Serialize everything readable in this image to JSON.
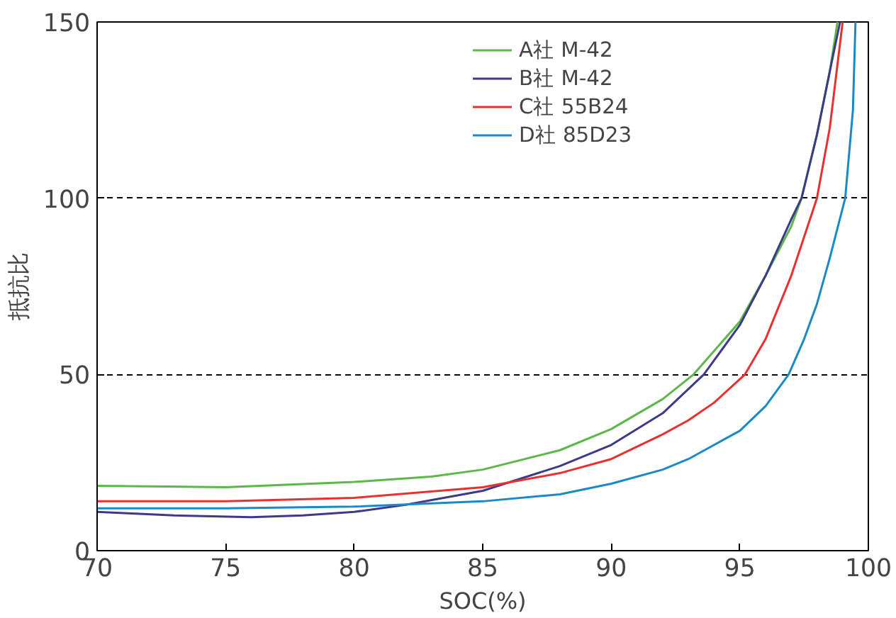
{
  "chart_data": {
    "type": "line",
    "xlabel": "SOC(%)",
    "ylabel": "抵抗比",
    "xlim": [
      70,
      100
    ],
    "ylim": [
      0,
      150
    ],
    "xticks": [
      70,
      75,
      80,
      85,
      90,
      95,
      100
    ],
    "yticks": [
      0,
      50,
      100,
      150
    ],
    "grid": "y",
    "legend": "top right",
    "line_style": "solid",
    "series": [
      {
        "name": "A社 M-42",
        "color": "#5cb848",
        "x": [
          70,
          75,
          80,
          83,
          85,
          88,
          90,
          92,
          93.2,
          95,
          96,
          97,
          97.4,
          98,
          98.5,
          98.8
        ],
        "values": [
          18.4,
          18,
          19.5,
          21,
          23,
          28.5,
          34.5,
          43,
          50,
          65,
          78,
          92,
          100,
          118,
          136,
          150
        ]
      },
      {
        "name": "B社 M-42",
        "color": "#3d3a8c",
        "x": [
          70,
          73,
          76,
          78,
          80,
          82,
          85,
          88,
          90,
          92,
          93.6,
          95,
          96,
          97,
          97.4,
          98,
          98.5,
          98.9
        ],
        "values": [
          11,
          10,
          9.5,
          10,
          11,
          13,
          17,
          24,
          30,
          39,
          50,
          64,
          78,
          94,
          100,
          118,
          136,
          150
        ]
      },
      {
        "name": "C社 55B24",
        "color": "#e8312f",
        "x": [
          70,
          75,
          80,
          85,
          88,
          90,
          92,
          93,
          94,
          95.2,
          96,
          97,
          98,
          98.5,
          99
        ],
        "values": [
          14,
          14,
          15,
          18,
          22,
          26,
          33,
          37,
          42,
          50,
          60,
          78,
          100,
          120,
          150
        ]
      },
      {
        "name": "D社 85D23",
        "color": "#1a8ac6",
        "x": [
          70,
          75,
          80,
          85,
          88,
          90,
          92,
          93,
          94,
          95,
          96,
          96.9,
          97.5,
          98,
          98.5,
          99.1,
          99.4,
          99.5
        ],
        "values": [
          12,
          12,
          12.5,
          14,
          16,
          19,
          23,
          26,
          30,
          34,
          41,
          50,
          60,
          70,
          83,
          100,
          125,
          150
        ]
      }
    ]
  }
}
